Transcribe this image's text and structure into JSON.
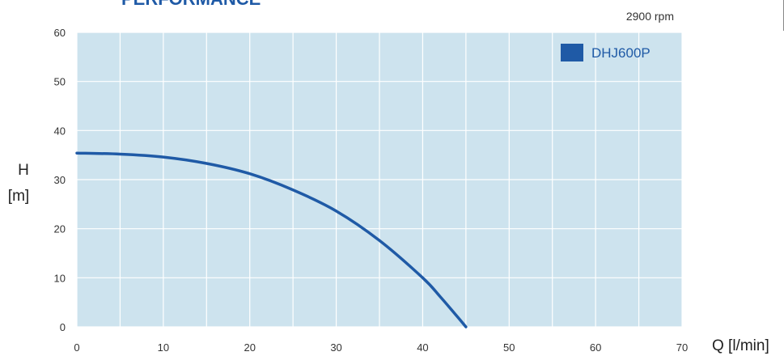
{
  "chart_data": {
    "type": "line",
    "title": "PERFORMANCE",
    "speed_note": "2900 rpm",
    "xlabel": "Q [l/min]",
    "ylabel_lines": [
      "H",
      "[m]"
    ],
    "xlim": [
      0,
      70
    ],
    "ylim": [
      0,
      60
    ],
    "x_ticks": [
      "0",
      "10",
      "20",
      "30",
      "40",
      "50",
      "60",
      "70"
    ],
    "y_ticks": [
      "0",
      "10",
      "20",
      "30",
      "40",
      "50",
      "60"
    ],
    "grid": true,
    "legend_position": "top-right",
    "series": [
      {
        "name": "DHJ600P",
        "color": "#1f5aa6",
        "x": [
          0,
          5,
          10,
          15,
          20,
          25,
          30,
          35,
          40,
          42,
          44,
          45
        ],
        "y": [
          35.4,
          35.2,
          34.6,
          33.3,
          31.2,
          27.9,
          23.6,
          17.6,
          10.0,
          6.2,
          2.1,
          0
        ]
      }
    ],
    "colors": {
      "plot_background": "#cde3ee",
      "grid": "#ffffff"
    }
  }
}
